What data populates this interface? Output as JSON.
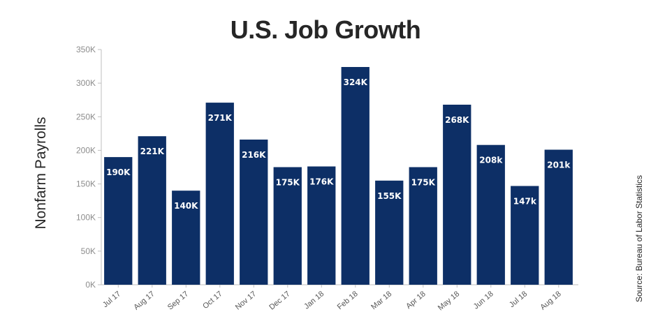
{
  "colors": {
    "bar": "#0d2f66",
    "axis": "#bfbfbf",
    "title": "#262626",
    "bar_label": "#ffffff"
  },
  "chart_data": {
    "type": "bar",
    "title": "U.S. Job Growth",
    "xlabel": "",
    "ylabel": "Nonfarm Payrolls",
    "source": "Source: Bureau of Labor Statistics",
    "ylim": [
      0,
      350
    ],
    "y_unit": "thousands",
    "yticks": [
      0,
      50,
      100,
      150,
      200,
      250,
      300,
      350
    ],
    "ytick_labels": [
      "0K",
      "50K",
      "100K",
      "150K",
      "200K",
      "250K",
      "300K",
      "350K"
    ],
    "grid": false,
    "categories": [
      "Jul 17",
      "Aug 17",
      "Sep 17",
      "Oct 17",
      "Nov 17",
      "Dec 17",
      "Jan 18",
      "Feb 18",
      "Mar 18",
      "Apr 18",
      "May 18",
      "Jun 18",
      "Jul 18",
      "Aug 18"
    ],
    "values": [
      190,
      221,
      140,
      271,
      216,
      175,
      176,
      324,
      155,
      175,
      268,
      208,
      147,
      201
    ],
    "data_labels": [
      "190K",
      "221K",
      "140K",
      "271K",
      "216K",
      "175K",
      "176K",
      "324K",
      "155K",
      "175K",
      "268K",
      "208k",
      "147k",
      "201k"
    ]
  }
}
